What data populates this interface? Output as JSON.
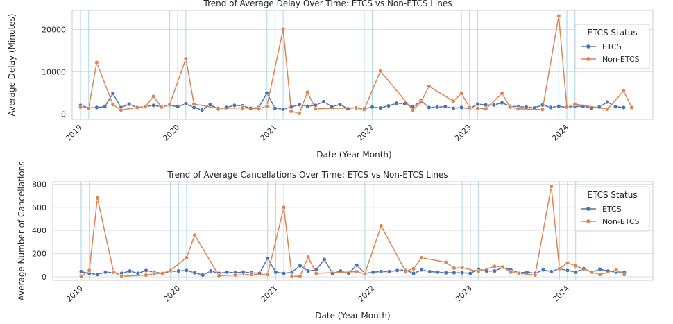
{
  "colors": {
    "etcs": "#4c72b0",
    "non_etcs": "#dd8452",
    "grid": "#dadde3",
    "vline": "#add8e6",
    "frame": "#c7cbd1"
  },
  "chart_data": [
    {
      "type": "line",
      "title": "Trend of Average Delay Over Time: ETCS vs Non-ETCS Lines",
      "xlabel": "Date (Year-Month)",
      "ylabel": "Average Delay (Minutes)",
      "ylim": [
        -1200,
        24500
      ],
      "yticks": [
        0,
        10000,
        20000
      ],
      "ytick_labels": [
        "0",
        "10000",
        "20000"
      ],
      "xticks": [
        "2019-01",
        "2020-01",
        "2021-01",
        "2022-01",
        "2023-01",
        "2024-01"
      ],
      "xtick_labels": [
        "2019",
        "2020",
        "2021",
        "2022",
        "2023",
        "2024"
      ],
      "vlines": [
        "2019-01",
        "2019-02",
        "2019-12",
        "2020-01",
        "2020-02",
        "2020-12",
        "2021-01",
        "2021-02",
        "2021-12",
        "2022-01",
        "2022-12",
        "2023-01",
        "2023-02",
        "2023-12",
        "2024-01",
        "2024-02"
      ],
      "legend": {
        "title": "ETCS Status",
        "position": "top-right"
      },
      "series": [
        {
          "name": "ETCS",
          "points": [
            [
              "2019-01",
              2100
            ],
            [
              "2019-02",
              1500
            ],
            [
              "2019-03",
              1600
            ],
            [
              "2019-04",
              1800
            ],
            [
              "2019-05",
              4900
            ],
            [
              "2019-06",
              1600
            ],
            [
              "2019-07",
              2400
            ],
            [
              "2019-08",
              1600
            ],
            [
              "2019-09",
              1800
            ],
            [
              "2019-10",
              2100
            ],
            [
              "2019-11",
              1800
            ],
            [
              "2019-12",
              2100
            ],
            [
              "2020-01",
              1800
            ],
            [
              "2020-02",
              2500
            ],
            [
              "2020-03",
              1600
            ],
            [
              "2020-04",
              1000
            ],
            [
              "2020-05",
              2300
            ],
            [
              "2020-06",
              1200
            ],
            [
              "2020-07",
              1600
            ],
            [
              "2020-08",
              2100
            ],
            [
              "2020-09",
              2000
            ],
            [
              "2020-10",
              1400
            ],
            [
              "2020-11",
              1600
            ],
            [
              "2020-12",
              5000
            ],
            [
              "2021-01",
              1400
            ],
            [
              "2021-02",
              1200
            ],
            [
              "2021-03",
              1700
            ],
            [
              "2021-04",
              2300
            ],
            [
              "2021-05",
              1900
            ],
            [
              "2021-06",
              2100
            ],
            [
              "2021-07",
              3000
            ],
            [
              "2021-08",
              1800
            ],
            [
              "2021-09",
              2300
            ],
            [
              "2021-10",
              1300
            ],
            [
              "2021-11",
              1600
            ],
            [
              "2021-12",
              1300
            ],
            [
              "2022-01",
              1700
            ],
            [
              "2022-02",
              1500
            ],
            [
              "2022-03",
              2000
            ],
            [
              "2022-04",
              2600
            ],
            [
              "2022-05",
              2500
            ],
            [
              "2022-06",
              1700
            ],
            [
              "2022-07",
              3200
            ],
            [
              "2022-08",
              1600
            ],
            [
              "2022-09",
              1700
            ],
            [
              "2022-10",
              1800
            ],
            [
              "2022-11",
              1400
            ],
            [
              "2022-12",
              1600
            ],
            [
              "2023-01",
              1300
            ],
            [
              "2023-02",
              2400
            ],
            [
              "2023-03",
              2200
            ],
            [
              "2023-04",
              2200
            ],
            [
              "2023-05",
              2700
            ],
            [
              "2023-06",
              1900
            ],
            [
              "2023-07",
              1800
            ],
            [
              "2023-08",
              1700
            ],
            [
              "2023-09",
              1500
            ],
            [
              "2023-10",
              2200
            ],
            [
              "2023-11",
              1600
            ],
            [
              "2023-12",
              1900
            ],
            [
              "2024-01",
              1600
            ],
            [
              "2024-02",
              1900
            ],
            [
              "2024-03",
              1900
            ],
            [
              "2024-04",
              1500
            ],
            [
              "2024-05",
              1700
            ],
            [
              "2024-06",
              2900
            ],
            [
              "2024-07",
              1800
            ],
            [
              "2024-08",
              1600
            ]
          ]
        },
        {
          "name": "Non-ETCS",
          "points": [
            [
              "2019-01",
              1700
            ],
            [
              "2019-02",
              1400
            ],
            [
              "2019-03",
              12200
            ],
            [
              "2019-05",
              2300
            ],
            [
              "2019-06",
              1000
            ],
            [
              "2019-08",
              1600
            ],
            [
              "2019-09",
              1800
            ],
            [
              "2019-10",
              4200
            ],
            [
              "2019-11",
              1700
            ],
            [
              "2019-12",
              2300
            ],
            [
              "2020-02",
              13100
            ],
            [
              "2020-03",
              2400
            ],
            [
              "2020-06",
              1400
            ],
            [
              "2020-09",
              1500
            ],
            [
              "2020-11",
              1300
            ],
            [
              "2020-12",
              1900
            ],
            [
              "2021-02",
              20100
            ],
            [
              "2021-03",
              700
            ],
            [
              "2021-04",
              200
            ],
            [
              "2021-05",
              5200
            ],
            [
              "2021-06",
              1300
            ],
            [
              "2021-11",
              1500
            ],
            [
              "2021-12",
              1100
            ],
            [
              "2022-02",
              10200
            ],
            [
              "2022-06",
              1000
            ],
            [
              "2022-07",
              2900
            ],
            [
              "2022-08",
              6600
            ],
            [
              "2022-11",
              3100
            ],
            [
              "2022-12",
              4900
            ],
            [
              "2023-01",
              1600
            ],
            [
              "2023-02",
              1400
            ],
            [
              "2023-03",
              1300
            ],
            [
              "2023-05",
              4900
            ],
            [
              "2023-06",
              1700
            ],
            [
              "2023-07",
              1300
            ],
            [
              "2023-10",
              1100
            ],
            [
              "2023-12",
              23200
            ],
            [
              "2024-01",
              1700
            ],
            [
              "2024-02",
              2400
            ],
            [
              "2024-06",
              1200
            ],
            [
              "2024-08",
              5500
            ],
            [
              "2024-09",
              1600
            ]
          ]
        }
      ]
    },
    {
      "type": "line",
      "title": "Trend of Average Cancellations Over Time: ETCS vs Non-ETCS Lines",
      "xlabel": "Date (Year-Month)",
      "ylabel": "Average Number of Cancellations",
      "ylim": [
        -30,
        820
      ],
      "yticks": [
        0,
        200,
        400,
        600,
        800
      ],
      "ytick_labels": [
        "0",
        "200",
        "400",
        "600",
        "800"
      ],
      "xticks": [
        "2019-01",
        "2020-01",
        "2021-01",
        "2022-01",
        "2023-01",
        "2024-01"
      ],
      "xtick_labels": [
        "2019",
        "2020",
        "2021",
        "2022",
        "2023",
        "2024"
      ],
      "vlines": [
        "2019-01",
        "2019-02",
        "2019-12",
        "2020-01",
        "2020-02",
        "2020-12",
        "2021-01",
        "2021-02",
        "2021-12",
        "2022-01",
        "2022-12",
        "2023-01",
        "2023-02",
        "2023-12",
        "2024-01",
        "2024-02"
      ],
      "legend": {
        "title": "ETCS Status",
        "position": "right"
      },
      "series": [
        {
          "name": "ETCS",
          "points": [
            [
              "2019-01",
              45
            ],
            [
              "2019-02",
              30
            ],
            [
              "2019-03",
              20
            ],
            [
              "2019-04",
              40
            ],
            [
              "2019-05",
              35
            ],
            [
              "2019-06",
              30
            ],
            [
              "2019-07",
              50
            ],
            [
              "2019-08",
              30
            ],
            [
              "2019-09",
              55
            ],
            [
              "2019-10",
              40
            ],
            [
              "2019-11",
              30
            ],
            [
              "2019-12",
              45
            ],
            [
              "2020-01",
              50
            ],
            [
              "2020-02",
              55
            ],
            [
              "2020-03",
              35
            ],
            [
              "2020-04",
              15
            ],
            [
              "2020-05",
              50
            ],
            [
              "2020-06",
              30
            ],
            [
              "2020-07",
              40
            ],
            [
              "2020-08",
              35
            ],
            [
              "2020-09",
              40
            ],
            [
              "2020-10",
              35
            ],
            [
              "2020-11",
              30
            ],
            [
              "2020-12",
              160
            ],
            [
              "2021-01",
              40
            ],
            [
              "2021-02",
              30
            ],
            [
              "2021-03",
              40
            ],
            [
              "2021-04",
              95
            ],
            [
              "2021-05",
              50
            ],
            [
              "2021-06",
              60
            ],
            [
              "2021-07",
              150
            ],
            [
              "2021-08",
              30
            ],
            [
              "2021-09",
              50
            ],
            [
              "2021-10",
              30
            ],
            [
              "2021-11",
              100
            ],
            [
              "2021-12",
              30
            ],
            [
              "2022-01",
              40
            ],
            [
              "2022-02",
              45
            ],
            [
              "2022-03",
              45
            ],
            [
              "2022-04",
              55
            ],
            [
              "2022-05",
              60
            ],
            [
              "2022-06",
              30
            ],
            [
              "2022-07",
              60
            ],
            [
              "2022-08",
              45
            ],
            [
              "2022-09",
              40
            ],
            [
              "2022-10",
              35
            ],
            [
              "2022-11",
              35
            ],
            [
              "2022-12",
              35
            ],
            [
              "2023-01",
              30
            ],
            [
              "2023-02",
              65
            ],
            [
              "2023-03",
              50
            ],
            [
              "2023-04",
              50
            ],
            [
              "2023-05",
              80
            ],
            [
              "2023-06",
              60
            ],
            [
              "2023-07",
              35
            ],
            [
              "2023-08",
              40
            ],
            [
              "2023-09",
              30
            ],
            [
              "2023-10",
              60
            ],
            [
              "2023-11",
              45
            ],
            [
              "2023-12",
              70
            ],
            [
              "2024-01",
              55
            ],
            [
              "2024-02",
              40
            ],
            [
              "2024-03",
              70
            ],
            [
              "2024-04",
              40
            ],
            [
              "2024-05",
              65
            ],
            [
              "2024-06",
              50
            ],
            [
              "2024-07",
              40
            ],
            [
              "2024-08",
              40
            ]
          ]
        },
        {
          "name": "Non-ETCS",
          "points": [
            [
              "2019-01",
              5
            ],
            [
              "2019-02",
              55
            ],
            [
              "2019-03",
              680
            ],
            [
              "2019-05",
              40
            ],
            [
              "2019-06",
              5
            ],
            [
              "2019-09",
              15
            ],
            [
              "2019-10",
              25
            ],
            [
              "2019-11",
              30
            ],
            [
              "2019-12",
              55
            ],
            [
              "2020-02",
              165
            ],
            [
              "2020-03",
              360
            ],
            [
              "2020-06",
              10
            ],
            [
              "2020-08",
              15
            ],
            [
              "2020-10",
              20
            ],
            [
              "2020-12",
              20
            ],
            [
              "2021-02",
              600
            ],
            [
              "2021-03",
              5
            ],
            [
              "2021-04",
              5
            ],
            [
              "2021-05",
              170
            ],
            [
              "2021-06",
              30
            ],
            [
              "2021-11",
              45
            ],
            [
              "2021-12",
              25
            ],
            [
              "2022-02",
              440
            ],
            [
              "2022-05",
              50
            ],
            [
              "2022-06",
              70
            ],
            [
              "2022-07",
              165
            ],
            [
              "2022-10",
              125
            ],
            [
              "2022-11",
              75
            ],
            [
              "2022-12",
              80
            ],
            [
              "2023-02",
              45
            ],
            [
              "2023-04",
              90
            ],
            [
              "2023-05",
              85
            ],
            [
              "2023-06",
              40
            ],
            [
              "2023-07",
              30
            ],
            [
              "2023-09",
              15
            ],
            [
              "2023-11",
              780
            ],
            [
              "2023-12",
              70
            ],
            [
              "2024-01",
              120
            ],
            [
              "2024-02",
              95
            ],
            [
              "2024-04",
              40
            ],
            [
              "2024-05",
              20
            ],
            [
              "2024-07",
              60
            ],
            [
              "2024-08",
              20
            ]
          ]
        }
      ]
    }
  ]
}
